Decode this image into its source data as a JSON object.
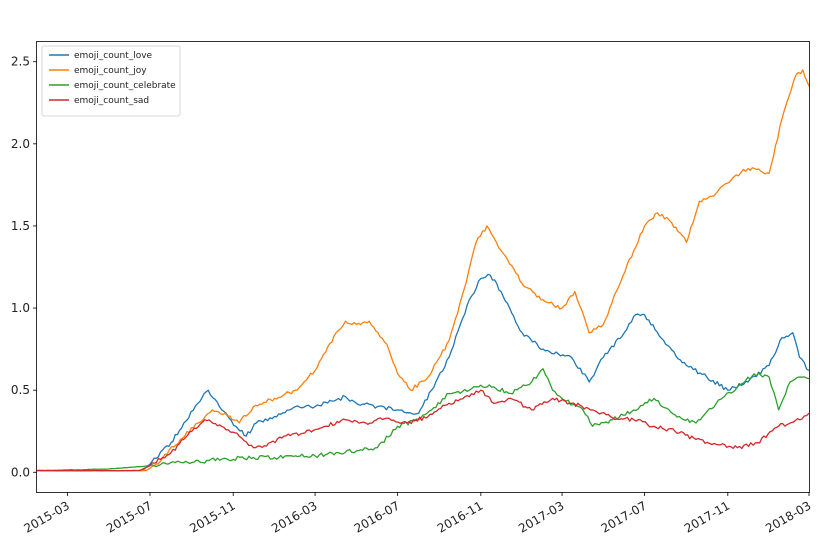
{
  "chart_data": {
    "type": "line",
    "title": "",
    "xlabel": "",
    "ylabel": "",
    "x_range": [
      "2015-01-15",
      "2018-03-01"
    ],
    "ylim": [
      -0.12,
      2.62
    ],
    "x_ticks": [
      "2015-03",
      "2015-07",
      "2015-11",
      "2016-03",
      "2016-07",
      "2016-11",
      "2017-03",
      "2017-07",
      "2017-11",
      "2018-03"
    ],
    "y_ticks": [
      "0.0",
      "0.5",
      "1.0",
      "1.5",
      "2.0",
      "2.5"
    ],
    "y_tick_values": [
      0.0,
      0.5,
      1.0,
      1.5,
      2.0,
      2.5
    ],
    "grid": false,
    "legend": {
      "position": "top-left"
    },
    "series": [
      {
        "name": "emoji_count_love",
        "color": "#1f77b4",
        "points": [
          [
            "2015-01-15",
            0.01
          ],
          [
            "2015-06-20",
            0.01
          ],
          [
            "2015-07-01",
            0.05
          ],
          [
            "2015-08-01",
            0.18
          ],
          [
            "2015-08-20",
            0.3
          ],
          [
            "2015-09-10",
            0.42
          ],
          [
            "2015-09-25",
            0.5
          ],
          [
            "2015-10-15",
            0.38
          ],
          [
            "2015-11-05",
            0.28
          ],
          [
            "2015-11-20",
            0.22
          ],
          [
            "2015-12-05",
            0.3
          ],
          [
            "2016-01-01",
            0.34
          ],
          [
            "2016-02-01",
            0.4
          ],
          [
            "2016-03-01",
            0.4
          ],
          [
            "2016-04-01",
            0.44
          ],
          [
            "2016-04-15",
            0.46
          ],
          [
            "2016-05-01",
            0.42
          ],
          [
            "2016-06-01",
            0.4
          ],
          [
            "2016-07-01",
            0.38
          ],
          [
            "2016-08-01",
            0.36
          ],
          [
            "2016-08-20",
            0.5
          ],
          [
            "2016-09-15",
            0.7
          ],
          [
            "2016-10-15",
            1.05
          ],
          [
            "2016-11-01",
            1.18
          ],
          [
            "2016-11-15",
            1.2
          ],
          [
            "2016-12-01",
            1.1
          ],
          [
            "2017-01-01",
            0.85
          ],
          [
            "2017-02-01",
            0.75
          ],
          [
            "2017-03-15",
            0.7
          ],
          [
            "2017-04-10",
            0.55
          ],
          [
            "2017-05-01",
            0.7
          ],
          [
            "2017-06-01",
            0.85
          ],
          [
            "2017-06-15",
            0.95
          ],
          [
            "2017-07-01",
            0.96
          ],
          [
            "2017-08-01",
            0.78
          ],
          [
            "2017-09-01",
            0.65
          ],
          [
            "2017-10-01",
            0.58
          ],
          [
            "2017-11-01",
            0.5
          ],
          [
            "2017-12-01",
            0.55
          ],
          [
            "2018-01-01",
            0.65
          ],
          [
            "2018-01-20",
            0.82
          ],
          [
            "2018-02-05",
            0.85
          ],
          [
            "2018-02-15",
            0.7
          ],
          [
            "2018-03-01",
            0.62
          ]
        ]
      },
      {
        "name": "emoji_count_joy",
        "color": "#ff7f0e",
        "points": [
          [
            "2015-01-15",
            0.01
          ],
          [
            "2015-06-25",
            0.01
          ],
          [
            "2015-07-10",
            0.05
          ],
          [
            "2015-08-15",
            0.2
          ],
          [
            "2015-09-10",
            0.3
          ],
          [
            "2015-10-01",
            0.38
          ],
          [
            "2015-10-20",
            0.36
          ],
          [
            "2015-11-10",
            0.3
          ],
          [
            "2015-12-01",
            0.4
          ],
          [
            "2016-01-01",
            0.45
          ],
          [
            "2016-02-01",
            0.5
          ],
          [
            "2016-03-01",
            0.62
          ],
          [
            "2016-04-01",
            0.85
          ],
          [
            "2016-04-15",
            0.92
          ],
          [
            "2016-05-01",
            0.9
          ],
          [
            "2016-05-20",
            0.92
          ],
          [
            "2016-06-15",
            0.78
          ],
          [
            "2016-07-01",
            0.6
          ],
          [
            "2016-07-20",
            0.5
          ],
          [
            "2016-08-15",
            0.58
          ],
          [
            "2016-09-15",
            0.8
          ],
          [
            "2016-10-10",
            1.15
          ],
          [
            "2016-10-25",
            1.4
          ],
          [
            "2016-11-10",
            1.5
          ],
          [
            "2016-12-01",
            1.35
          ],
          [
            "2017-01-01",
            1.15
          ],
          [
            "2017-02-01",
            1.05
          ],
          [
            "2017-03-01",
            1.0
          ],
          [
            "2017-03-20",
            1.1
          ],
          [
            "2017-04-10",
            0.85
          ],
          [
            "2017-05-01",
            0.9
          ],
          [
            "2017-05-20",
            1.1
          ],
          [
            "2017-06-15",
            1.35
          ],
          [
            "2017-07-01",
            1.5
          ],
          [
            "2017-07-20",
            1.58
          ],
          [
            "2017-08-10",
            1.52
          ],
          [
            "2017-09-01",
            1.4
          ],
          [
            "2017-09-20",
            1.65
          ],
          [
            "2017-10-15",
            1.7
          ],
          [
            "2017-11-10",
            1.8
          ],
          [
            "2017-12-01",
            1.85
          ],
          [
            "2018-01-01",
            1.82
          ],
          [
            "2018-01-20",
            2.15
          ],
          [
            "2018-02-10",
            2.42
          ],
          [
            "2018-02-20",
            2.45
          ],
          [
            "2018-03-01",
            2.35
          ]
        ]
      },
      {
        "name": "emoji_count_celebrate",
        "color": "#2ca02c",
        "points": [
          [
            "2015-01-15",
            0.01
          ],
          [
            "2015-05-01",
            0.02
          ],
          [
            "2015-07-01",
            0.04
          ],
          [
            "2015-08-01",
            0.06
          ],
          [
            "2015-09-01",
            0.06
          ],
          [
            "2015-10-15",
            0.08
          ],
          [
            "2015-12-01",
            0.09
          ],
          [
            "2016-01-01",
            0.09
          ],
          [
            "2016-02-01",
            0.1
          ],
          [
            "2016-03-01",
            0.1
          ],
          [
            "2016-04-01",
            0.12
          ],
          [
            "2016-05-01",
            0.13
          ],
          [
            "2016-06-01",
            0.15
          ],
          [
            "2016-07-01",
            0.28
          ],
          [
            "2016-08-01",
            0.32
          ],
          [
            "2016-08-20",
            0.38
          ],
          [
            "2016-09-15",
            0.48
          ],
          [
            "2016-10-15",
            0.5
          ],
          [
            "2016-11-01",
            0.53
          ],
          [
            "2016-11-20",
            0.52
          ],
          [
            "2016-12-15",
            0.48
          ],
          [
            "2017-01-15",
            0.55
          ],
          [
            "2017-02-01",
            0.63
          ],
          [
            "2017-02-15",
            0.5
          ],
          [
            "2017-03-01",
            0.45
          ],
          [
            "2017-04-01",
            0.38
          ],
          [
            "2017-04-15",
            0.28
          ],
          [
            "2017-05-15",
            0.32
          ],
          [
            "2017-06-15",
            0.38
          ],
          [
            "2017-07-15",
            0.45
          ],
          [
            "2017-08-15",
            0.35
          ],
          [
            "2017-09-15",
            0.3
          ],
          [
            "2017-10-15",
            0.42
          ],
          [
            "2017-11-15",
            0.52
          ],
          [
            "2017-12-10",
            0.6
          ],
          [
            "2018-01-01",
            0.58
          ],
          [
            "2018-01-15",
            0.38
          ],
          [
            "2018-02-01",
            0.55
          ],
          [
            "2018-02-15",
            0.58
          ],
          [
            "2018-03-01",
            0.57
          ]
        ]
      },
      {
        "name": "emoji_count_sad",
        "color": "#d62728",
        "points": [
          [
            "2015-01-15",
            0.01
          ],
          [
            "2015-06-15",
            0.01
          ],
          [
            "2015-07-01",
            0.04
          ],
          [
            "2015-08-01",
            0.12
          ],
          [
            "2015-09-01",
            0.25
          ],
          [
            "2015-09-20",
            0.32
          ],
          [
            "2015-10-15",
            0.28
          ],
          [
            "2015-11-10",
            0.22
          ],
          [
            "2015-12-01",
            0.15
          ],
          [
            "2015-12-20",
            0.16
          ],
          [
            "2016-01-15",
            0.22
          ],
          [
            "2016-02-15",
            0.24
          ],
          [
            "2016-03-15",
            0.28
          ],
          [
            "2016-04-15",
            0.32
          ],
          [
            "2016-05-15",
            0.3
          ],
          [
            "2016-06-15",
            0.33
          ],
          [
            "2016-07-15",
            0.3
          ],
          [
            "2016-08-15",
            0.34
          ],
          [
            "2016-09-15",
            0.42
          ],
          [
            "2016-10-15",
            0.46
          ],
          [
            "2016-11-01",
            0.5
          ],
          [
            "2016-11-20",
            0.42
          ],
          [
            "2016-12-15",
            0.45
          ],
          [
            "2017-01-15",
            0.38
          ],
          [
            "2017-02-15",
            0.45
          ],
          [
            "2017-03-15",
            0.42
          ],
          [
            "2017-04-15",
            0.38
          ],
          [
            "2017-05-15",
            0.33
          ],
          [
            "2017-06-15",
            0.32
          ],
          [
            "2017-07-15",
            0.28
          ],
          [
            "2017-08-15",
            0.25
          ],
          [
            "2017-09-15",
            0.2
          ],
          [
            "2017-10-15",
            0.17
          ],
          [
            "2017-11-15",
            0.15
          ],
          [
            "2017-12-15",
            0.18
          ],
          [
            "2018-01-15",
            0.28
          ],
          [
            "2018-02-15",
            0.32
          ],
          [
            "2018-03-01",
            0.36
          ]
        ]
      }
    ]
  }
}
